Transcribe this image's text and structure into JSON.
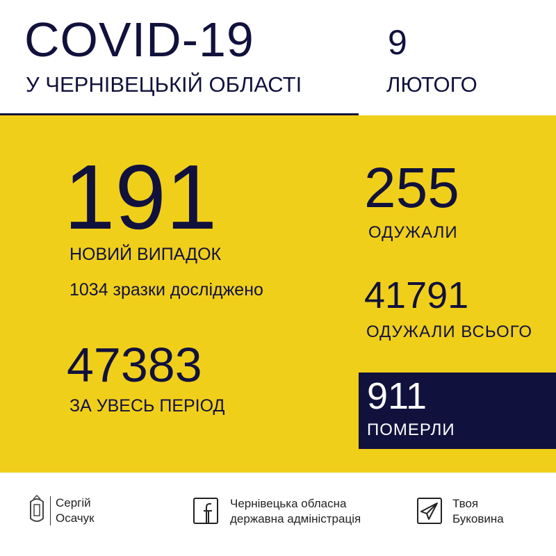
{
  "header": {
    "title": "COVID-19",
    "subtitle": "У ЧЕРНІВЕЦЬКІЙ ОБЛАСТІ",
    "day": "9",
    "month": "ЛЮТОГО"
  },
  "stats": {
    "new_cases": {
      "value": "191",
      "label": "НОВИЙ ВИПАДОК"
    },
    "tests": "1034 зразки досліджено",
    "total": {
      "value": "47383",
      "label": "ЗА УВЕСЬ ПЕРІОД"
    },
    "recovered": {
      "value": "255",
      "label": "ОДУЖАЛИ"
    },
    "recovered_total": {
      "value": "41791",
      "label": "ОДУЖАЛИ ВСЬОГО"
    },
    "deaths": {
      "value": "911",
      "label": "ПОМЕРЛИ"
    }
  },
  "footer": {
    "person": {
      "line1": "Сергій",
      "line2": "Осачук",
      "icon": "coat-of-arms-icon"
    },
    "facebook": {
      "line1": "Чернівецька обласна",
      "line2": "державна адміністрація",
      "icon": "facebook-icon"
    },
    "telegram": {
      "line1": "Твоя",
      "line2": "Буковина",
      "icon": "telegram-icon"
    }
  },
  "colors": {
    "yellow": "#f0cf1a",
    "navy": "#11113d"
  }
}
